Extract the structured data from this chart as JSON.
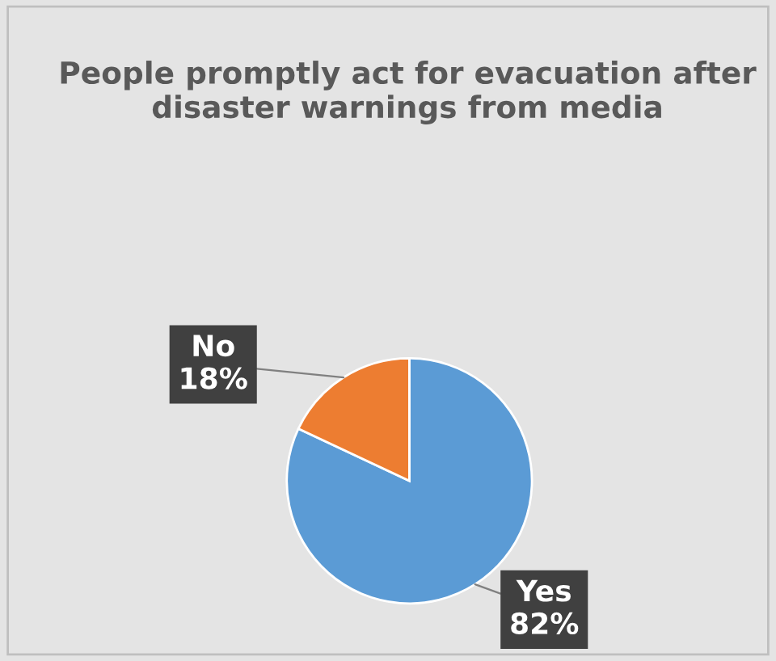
{
  "chart_data": {
    "type": "pie",
    "title": "People promptly act for evacuation after disaster warnings from media",
    "categories": [
      "Yes",
      "No"
    ],
    "values": [
      82,
      18
    ],
    "colors": [
      "#5b9bd5",
      "#ed7d31"
    ],
    "value_labels": [
      "82%",
      "18%"
    ]
  }
}
